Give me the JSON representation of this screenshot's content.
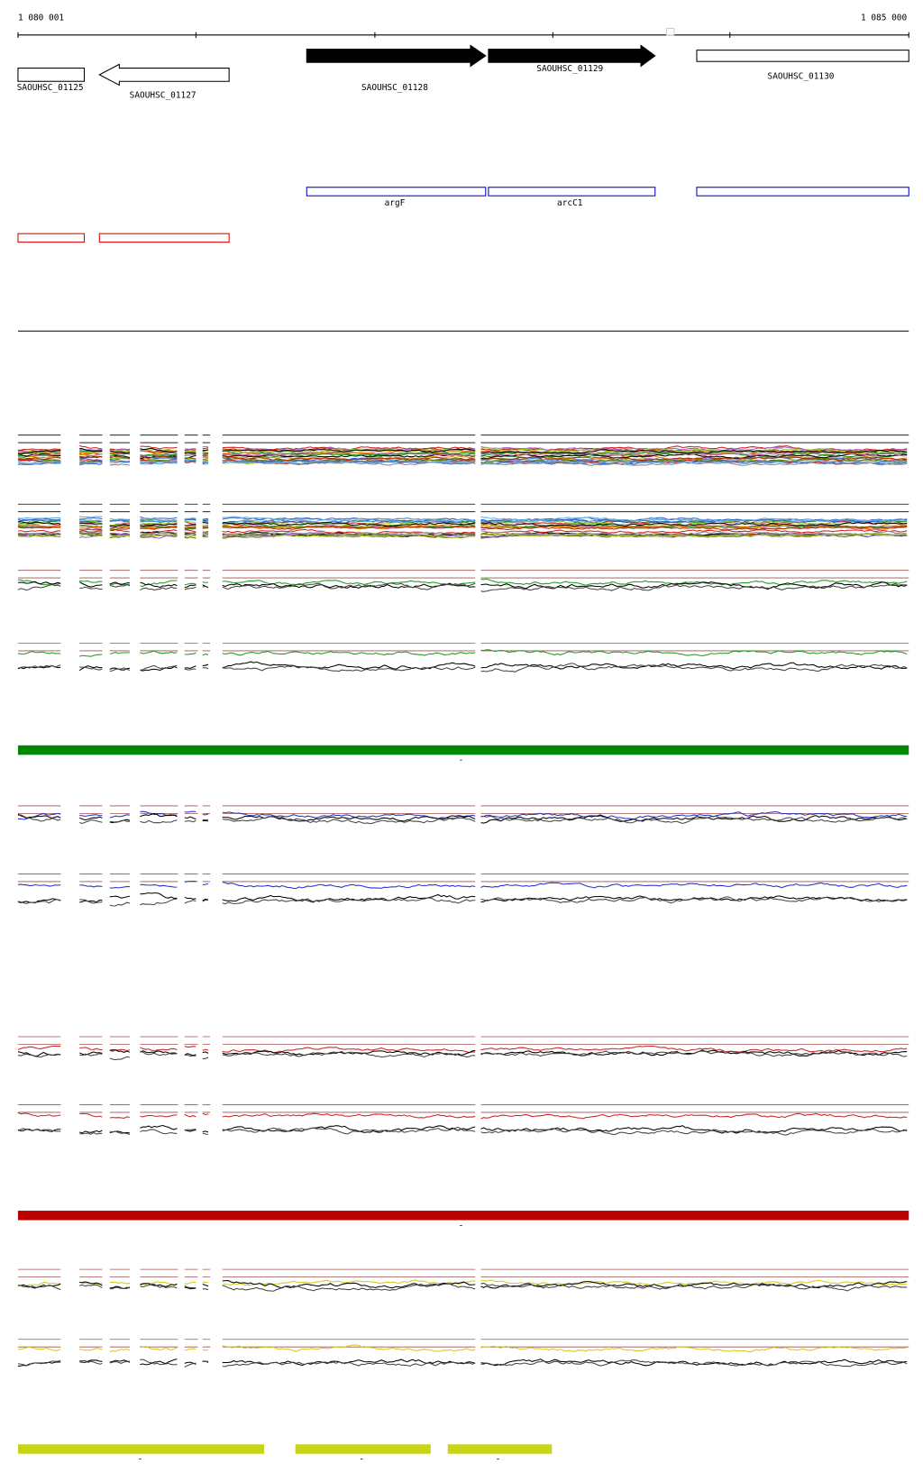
{
  "ruler": {
    "start": "1 080 001",
    "end": "1 085 000"
  },
  "genes": [
    {
      "label": "SAOUHSC_01125"
    },
    {
      "label": "SAOUHSC_01127"
    },
    {
      "label": "SAOUHSC_01128"
    },
    {
      "label": "SAOUHSC_01129"
    },
    {
      "label": "SAOUHSC_01130"
    }
  ],
  "features": [
    {
      "label": "argF"
    },
    {
      "label": "arcC1"
    }
  ],
  "bar_labels": [
    "-",
    "-",
    "-",
    "-",
    "-"
  ]
}
